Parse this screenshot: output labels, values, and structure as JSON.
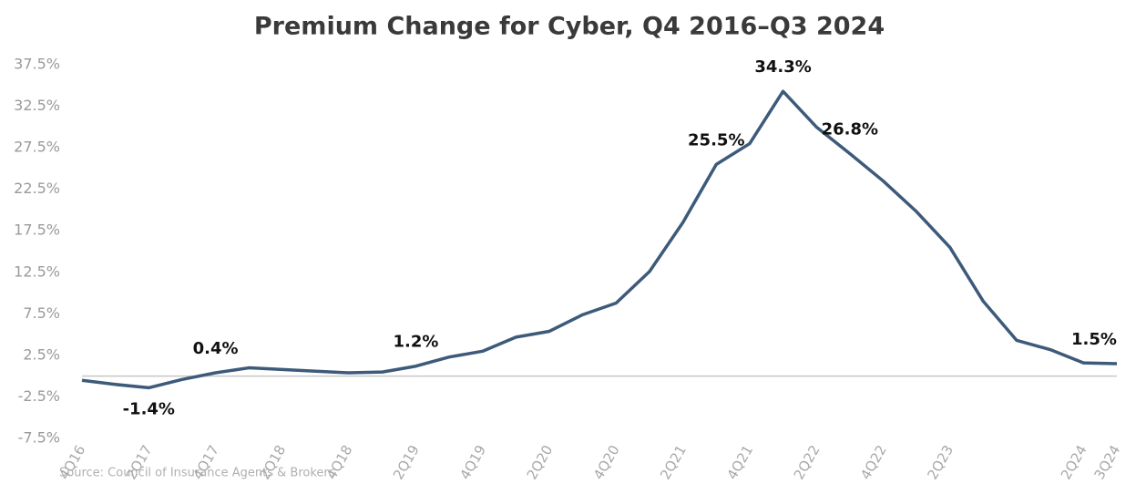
{
  "chart_data": {
    "type": "line",
    "title": "Premium Change for Cyber, Q4 2016–Q3 2024",
    "source": "Source: Council of Insurance Agents & Brokers",
    "categories": [
      "4Q16",
      null,
      "2Q17",
      null,
      "4Q17",
      null,
      "2Q18",
      null,
      "4Q18",
      null,
      "2Q19",
      null,
      "4Q19",
      null,
      "2Q20",
      null,
      "4Q20",
      null,
      "2Q21",
      null,
      "4Q21",
      null,
      "2Q22",
      null,
      "4Q22",
      null,
      "2Q23",
      null,
      null,
      null,
      "2Q24",
      "3Q24"
    ],
    "series": [
      {
        "name": "Premium change",
        "color": "#3d5a7a",
        "values": [
          -0.5,
          -1.0,
          -1.4,
          -0.4,
          0.4,
          1.0,
          0.8,
          0.6,
          0.4,
          0.5,
          1.2,
          2.3,
          3.0,
          4.7,
          5.4,
          7.4,
          8.8,
          12.6,
          18.5,
          25.5,
          28.0,
          34.3,
          30.0,
          26.8,
          23.5,
          19.8,
          15.5,
          9.0,
          4.3,
          3.2,
          1.6,
          1.5
        ],
        "value_labels": [
          null,
          null,
          "-1.4%",
          null,
          "0.4%",
          null,
          null,
          null,
          null,
          null,
          "1.2%",
          null,
          null,
          null,
          null,
          null,
          null,
          null,
          null,
          "25.5%",
          null,
          "34.3%",
          null,
          "26.8%",
          null,
          null,
          null,
          null,
          null,
          null,
          null,
          "1.5%"
        ]
      }
    ],
    "ylim": [
      -7.5,
      37.5
    ],
    "yticks": [
      {
        "value": -7.5,
        "label": "-7.5%"
      },
      {
        "value": -2.5,
        "label": "-2.5%"
      },
      {
        "value": 2.5,
        "label": "2.5%"
      },
      {
        "value": 7.5,
        "label": "7.5%"
      },
      {
        "value": 12.5,
        "label": "12.5%"
      },
      {
        "value": 17.5,
        "label": "17.5%"
      },
      {
        "value": 22.5,
        "label": "22.5%"
      },
      {
        "value": 27.5,
        "label": "27.5%"
      },
      {
        "value": 32.5,
        "label": "32.5%"
      },
      {
        "value": 37.5,
        "label": "37.5%"
      }
    ],
    "grid": false
  }
}
